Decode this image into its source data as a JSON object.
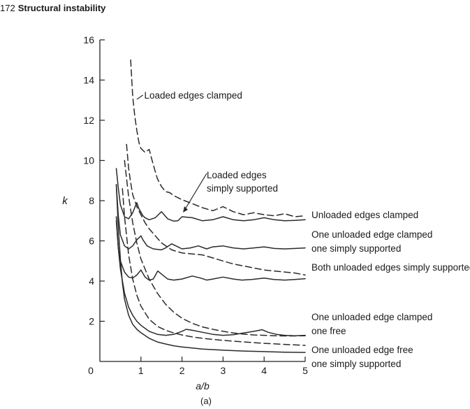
{
  "header": {
    "page_number": "172",
    "section_title": "Structural instability"
  },
  "chart_data": {
    "type": "line",
    "title": "",
    "xlabel": "a/b",
    "ylabel": "k",
    "caption": "(a)",
    "xlim": [
      0,
      5
    ],
    "ylim": [
      0,
      16
    ],
    "xticks": [
      "0",
      "1",
      "2",
      "3",
      "4",
      "5"
    ],
    "yticks": [
      "2",
      "4",
      "6",
      "8",
      "10",
      "12",
      "14",
      "16"
    ],
    "grid": false,
    "legend": "none",
    "annotations": [
      {
        "text": "Loaded edges clamped",
        "style": "dashed"
      },
      {
        "text": "Loaded edges\nsimply supported",
        "style": "solid"
      }
    ],
    "series": [
      {
        "name": "Unloaded edges clamped",
        "style": "solid",
        "x": [
          0.4,
          0.45,
          0.5,
          0.6,
          0.7,
          0.8,
          0.9,
          0.95,
          1.05,
          1.1,
          1.2,
          1.35,
          1.5,
          1.65,
          1.8,
          1.9,
          2.0,
          2.25,
          2.5,
          2.75,
          3.0,
          3.25,
          3.5,
          3.75,
          4.0,
          4.25,
          4.5,
          4.75,
          5.0
        ],
        "y": [
          9.6,
          8.6,
          7.8,
          7.2,
          7.1,
          7.4,
          7.9,
          7.6,
          7.25,
          7.15,
          7.05,
          7.15,
          7.45,
          7.1,
          6.98,
          7.0,
          7.2,
          7.15,
          7.0,
          7.05,
          7.2,
          7.05,
          7.0,
          7.05,
          7.15,
          7.05,
          7.0,
          7.02,
          7.05
        ]
      },
      {
        "name": "Loaded edges clamped",
        "style": "dashed",
        "x": [
          0.75,
          0.8,
          0.85,
          0.9,
          0.95,
          1.0,
          1.1,
          1.2,
          1.3,
          1.4,
          1.5,
          1.6,
          1.7,
          1.8,
          2.0,
          2.25,
          2.5,
          2.75,
          3.0,
          3.25,
          3.5,
          3.75,
          4.0,
          4.25,
          4.5,
          4.75,
          5.0
        ],
        "y": [
          15.0,
          13.2,
          12.2,
          11.5,
          10.9,
          10.6,
          10.4,
          10.55,
          9.8,
          9.1,
          8.7,
          8.45,
          8.4,
          8.25,
          8.05,
          7.85,
          7.65,
          7.5,
          7.7,
          7.45,
          7.3,
          7.4,
          7.3,
          7.25,
          7.35,
          7.2,
          7.25
        ]
      },
      {
        "name": "One unloaded edge clamped one simply supported",
        "style": "solid",
        "x": [
          0.4,
          0.45,
          0.5,
          0.6,
          0.7,
          0.8,
          0.9,
          1.0,
          1.05,
          1.15,
          1.3,
          1.5,
          1.6,
          1.75,
          1.9,
          2.0,
          2.2,
          2.4,
          2.6,
          2.75,
          3.0,
          3.25,
          3.5,
          3.75,
          4.0,
          4.25,
          4.5,
          4.75,
          5.0
        ],
        "y": [
          8.8,
          7.2,
          6.3,
          5.75,
          5.6,
          5.75,
          6.05,
          6.25,
          6.05,
          5.75,
          5.6,
          5.55,
          5.65,
          5.85,
          5.7,
          5.6,
          5.65,
          5.75,
          5.6,
          5.7,
          5.75,
          5.65,
          5.6,
          5.65,
          5.7,
          5.62,
          5.6,
          5.62,
          5.65
        ]
      },
      {
        "name": "",
        "style": "dashed",
        "x": [
          0.65,
          0.7,
          0.75,
          0.8,
          0.9,
          1.0,
          1.1,
          1.2,
          1.35,
          1.5,
          1.75,
          2.0,
          2.25,
          2.5,
          2.75,
          3.0,
          3.25,
          3.5,
          3.75,
          4.0,
          4.25,
          4.5,
          4.75,
          5.0
        ],
        "y": [
          10.8,
          9.6,
          8.9,
          8.3,
          7.7,
          7.3,
          6.9,
          6.6,
          6.25,
          5.9,
          5.55,
          5.4,
          5.35,
          5.3,
          5.15,
          5.0,
          4.85,
          4.75,
          4.65,
          4.55,
          4.5,
          4.45,
          4.4,
          4.3
        ]
      },
      {
        "name": "Both unloaded edges simply supported",
        "style": "solid",
        "x": [
          0.4,
          0.45,
          0.5,
          0.6,
          0.7,
          0.8,
          0.9,
          1.0,
          1.1,
          1.2,
          1.3,
          1.41,
          1.5,
          1.65,
          1.8,
          2.0,
          2.25,
          2.45,
          2.6,
          2.75,
          3.0,
          3.25,
          3.46,
          3.7,
          4.0,
          4.24,
          4.5,
          4.75,
          5.0
        ],
        "y": [
          7.0,
          5.6,
          5.0,
          4.45,
          4.2,
          4.15,
          4.3,
          4.55,
          4.2,
          4.05,
          4.1,
          4.5,
          4.35,
          4.1,
          4.05,
          4.1,
          4.25,
          4.15,
          4.05,
          4.1,
          4.2,
          4.1,
          4.05,
          4.08,
          4.15,
          4.08,
          4.05,
          4.08,
          4.12
        ]
      },
      {
        "name": "",
        "style": "dashed",
        "x": [
          0.6,
          0.7,
          0.8,
          0.9,
          1.0,
          1.2,
          1.4,
          1.6,
          1.8,
          2.0,
          2.25,
          2.5,
          2.75,
          3.0,
          3.25,
          3.5,
          3.75,
          4.0,
          4.25,
          4.5,
          4.75,
          5.0
        ],
        "y": [
          10.0,
          8.2,
          6.9,
          5.9,
          5.1,
          4.1,
          3.4,
          2.85,
          2.45,
          2.15,
          1.9,
          1.72,
          1.6,
          1.5,
          1.42,
          1.36,
          1.32,
          1.3,
          1.28,
          1.27,
          1.27,
          1.28
        ]
      },
      {
        "name": "One unloaded edge clamped one free",
        "style": "solid",
        "x": [
          0.4,
          0.45,
          0.5,
          0.6,
          0.7,
          0.8,
          0.9,
          1.0,
          1.2,
          1.4,
          1.6,
          1.8,
          2.0,
          2.1,
          2.25,
          2.5,
          2.75,
          3.0,
          3.25,
          3.5,
          3.75,
          3.95,
          4.1,
          4.3,
          4.5,
          4.75,
          5.0
        ],
        "y": [
          7.2,
          5.6,
          4.6,
          3.4,
          2.7,
          2.3,
          2.0,
          1.8,
          1.5,
          1.35,
          1.3,
          1.35,
          1.5,
          1.6,
          1.55,
          1.45,
          1.35,
          1.3,
          1.33,
          1.42,
          1.5,
          1.58,
          1.45,
          1.35,
          1.3,
          1.28,
          1.3
        ]
      },
      {
        "name": "",
        "style": "dashed",
        "x": [
          0.55,
          0.6,
          0.7,
          0.8,
          0.9,
          1.0,
          1.2,
          1.4,
          1.6,
          1.8,
          2.0,
          2.25,
          2.5,
          3.0,
          3.5,
          4.0,
          4.5,
          5.0
        ],
        "y": [
          8.6,
          7.2,
          5.3,
          4.1,
          3.3,
          2.75,
          2.1,
          1.75,
          1.55,
          1.42,
          1.32,
          1.22,
          1.15,
          1.05,
          0.97,
          0.9,
          0.85,
          0.8
        ]
      },
      {
        "name": "One unloaded edge free one simply supported",
        "style": "solid",
        "x": [
          0.4,
          0.45,
          0.5,
          0.55,
          0.6,
          0.7,
          0.8,
          0.9,
          1.0,
          1.2,
          1.4,
          1.6,
          1.8,
          2.0,
          2.5,
          3.0,
          3.5,
          4.0,
          4.5,
          5.0
        ],
        "y": [
          8.8,
          6.6,
          5.1,
          3.9,
          3.1,
          2.3,
          1.85,
          1.6,
          1.43,
          1.15,
          0.97,
          0.87,
          0.78,
          0.72,
          0.62,
          0.56,
          0.52,
          0.49,
          0.46,
          0.45
        ]
      }
    ]
  }
}
